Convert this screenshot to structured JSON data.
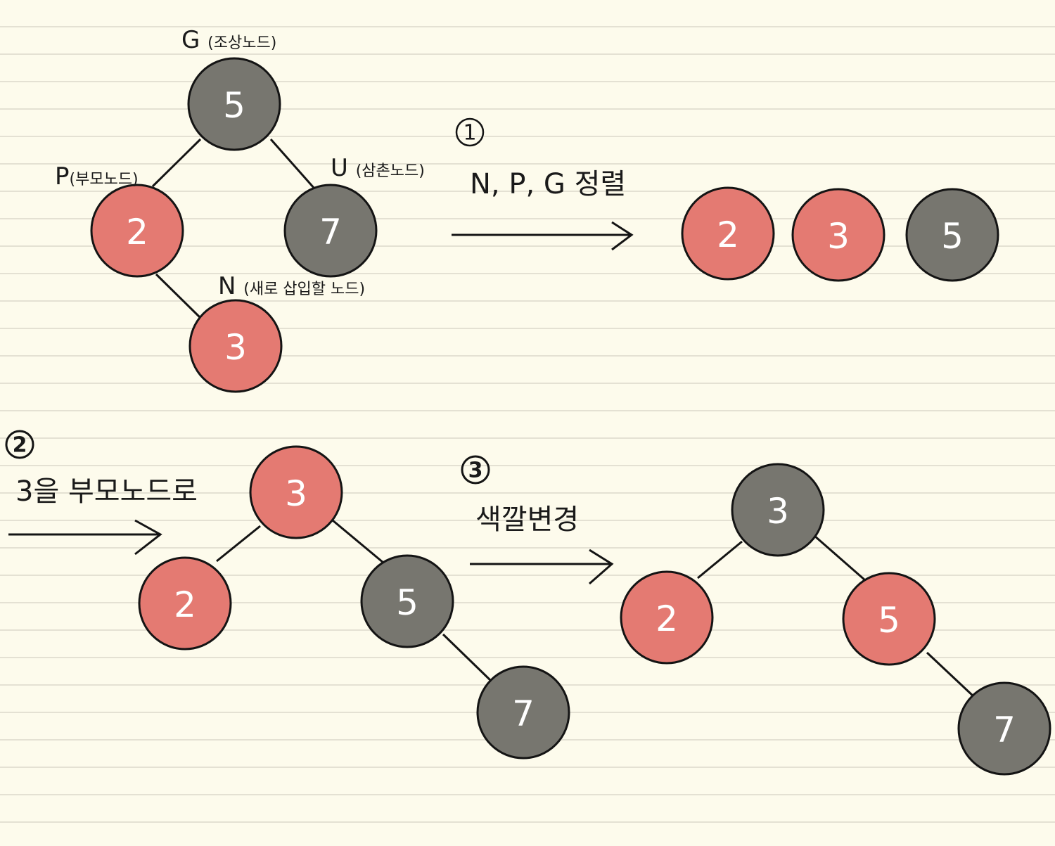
{
  "colors": {
    "red": "#e47a72",
    "black": "#77766f",
    "stroke": "#141414"
  },
  "tree_initial": {
    "g": {
      "value": "5",
      "tag": "G",
      "tag_desc": "(조상노드)"
    },
    "p": {
      "value": "2",
      "tag": "P",
      "tag_desc": "(부모노드)"
    },
    "u": {
      "value": "7",
      "tag": "U",
      "tag_desc": "(삼촌노드)"
    },
    "n": {
      "value": "3",
      "tag": "N",
      "tag_desc": "(새로 삽입할 노드)"
    }
  },
  "step1": {
    "number": "①",
    "label": "N, P, G 정렬",
    "row": [
      {
        "value": "2",
        "color": "red"
      },
      {
        "value": "3",
        "color": "red"
      },
      {
        "value": "5",
        "color": "black"
      }
    ]
  },
  "step2": {
    "number": "②",
    "label": "3을 부모노드로",
    "tree": {
      "root": "3",
      "left": "2",
      "right": "5",
      "right_right": "7"
    }
  },
  "step3": {
    "number": "③",
    "label": "색깔변경",
    "tree": {
      "root": "3",
      "left": "2",
      "right": "5",
      "right_right": "7"
    }
  }
}
